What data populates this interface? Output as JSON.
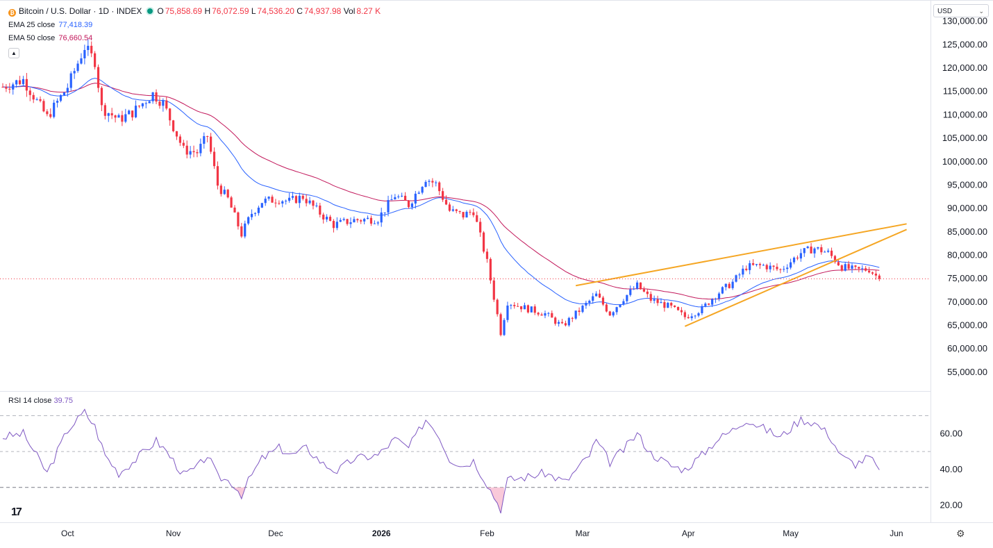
{
  "header": {
    "symbol": "Bitcoin / U.S. Dollar · 1D · INDEX",
    "coin_glyph": "₿",
    "ohlc": {
      "o_label": "O",
      "o_value": "75,858.69",
      "h_label": "H",
      "h_value": "76,072.59",
      "l_label": "L",
      "l_value": "74,536.20",
      "c_label": "C",
      "c_value": "74,937.98",
      "vol_label": "Vol",
      "vol_value": "8.27 K"
    },
    "ema25_label": "EMA 25 close",
    "ema25_value": "77,418.39",
    "ema50_label": "EMA 50 close",
    "ema50_value": "76,660.54",
    "collapse_icon": "chevron-up-icon",
    "currency": "USD"
  },
  "colors": {
    "up": "#2962ff",
    "down": "#f23645",
    "ema25": "#2962ff",
    "ema50": "#c2185b",
    "trendline": "#f5a623",
    "rsi": "#7e57c2",
    "rsi_fill": "#f8bbd0",
    "last_price_line": "#f23645"
  },
  "chart_data": {
    "type": "candlestick",
    "title": "Bitcoin / U.S. Dollar · 1D · INDEX",
    "y_axis": {
      "range": [
        52000,
        131000
      ],
      "ticks": [
        "130,000.00",
        "125,000.00",
        "120,000.00",
        "115,000.00",
        "110,000.00",
        "105,000.00",
        "100,000.00",
        "95,000.00",
        "90,000.00",
        "85,000.00",
        "80,000.00",
        "75,000.00",
        "70,000.00",
        "65,000.00",
        "60,000.00",
        "55,000.00"
      ],
      "tick_values": [
        130000,
        125000,
        120000,
        115000,
        110000,
        105000,
        100000,
        95000,
        90000,
        85000,
        80000,
        75000,
        70000,
        65000,
        60000,
        55000
      ]
    },
    "x_axis": {
      "labels": [
        "Oct",
        "Nov",
        "Dec",
        "2026",
        "Feb",
        "Mar",
        "Apr",
        "May",
        "Jun"
      ],
      "label_dates": [
        "2025-10-01",
        "2025-11-01",
        "2025-12-01",
        "2026-01-01",
        "2026-02-01",
        "2026-03-01",
        "2026-04-01",
        "2026-05-01",
        "2026-06-01"
      ],
      "start": "2025-09-12",
      "end": "2026-06-11"
    },
    "grid": false,
    "last_price": 74937.98,
    "anchors": [
      [
        "2025-09-12",
        116000
      ],
      [
        "2025-09-18",
        117500
      ],
      [
        "2025-09-25",
        109500
      ],
      [
        "2025-10-01",
        116000
      ],
      [
        "2025-10-06",
        124500
      ],
      [
        "2025-10-09",
        121500
      ],
      [
        "2025-10-11",
        111500
      ],
      [
        "2025-10-16",
        109000
      ],
      [
        "2025-10-20",
        110500
      ],
      [
        "2025-10-26",
        114500
      ],
      [
        "2025-10-29",
        112500
      ],
      [
        "2025-11-04",
        102500
      ],
      [
        "2025-11-08",
        102000
      ],
      [
        "2025-11-11",
        105500
      ],
      [
        "2025-11-14",
        95000
      ],
      [
        "2025-11-17",
        92000
      ],
      [
        "2025-11-21",
        84500
      ],
      [
        "2025-11-24",
        89000
      ],
      [
        "2025-11-27",
        91500
      ],
      [
        "2025-12-02",
        92000
      ],
      [
        "2025-12-05",
        91500
      ],
      [
        "2025-12-09",
        92500
      ],
      [
        "2025-12-14",
        89000
      ],
      [
        "2025-12-18",
        86500
      ],
      [
        "2025-12-24",
        87500
      ],
      [
        "2025-12-31",
        87800
      ],
      [
        "2026-01-05",
        92800
      ],
      [
        "2026-01-09",
        90800
      ],
      [
        "2026-01-14",
        96500
      ],
      [
        "2026-01-17",
        95200
      ],
      [
        "2026-01-21",
        89500
      ],
      [
        "2026-01-25",
        88500
      ],
      [
        "2026-01-28",
        89500
      ],
      [
        "2026-02-01",
        78500
      ],
      [
        "2026-02-05",
        63500
      ],
      [
        "2026-02-07",
        70000
      ],
      [
        "2026-02-13",
        68500
      ],
      [
        "2026-02-18",
        67500
      ],
      [
        "2026-02-23",
        64800
      ],
      [
        "2026-03-02",
        69500
      ],
      [
        "2026-03-05",
        71500
      ],
      [
        "2026-03-09",
        67500
      ],
      [
        "2026-03-13",
        70800
      ],
      [
        "2026-03-17",
        73500
      ],
      [
        "2026-03-21",
        70500
      ],
      [
        "2026-03-27",
        68800
      ],
      [
        "2026-03-31",
        66800
      ],
      [
        "2026-04-05",
        68500
      ],
      [
        "2026-04-09",
        71500
      ],
      [
        "2026-04-14",
        74200
      ],
      [
        "2026-04-18",
        77500
      ],
      [
        "2026-04-23",
        77800
      ],
      [
        "2026-04-28",
        76800
      ],
      [
        "2026-05-04",
        80500
      ],
      [
        "2026-05-08",
        81500
      ],
      [
        "2026-05-12",
        80500
      ],
      [
        "2026-05-16",
        77500
      ],
      [
        "2026-05-20",
        76800
      ],
      [
        "2026-05-24",
        77000
      ],
      [
        "2026-05-27",
        74938
      ]
    ],
    "ema25_label": "EMA 25 close",
    "ema25_last": 77418.39,
    "ema50_label": "EMA 50 close",
    "ema50_last": 76660.54,
    "trendlines": [
      {
        "from": [
          "2026-02-27",
          73500
        ],
        "to": [
          "2026-06-04",
          86700
        ]
      },
      {
        "from": [
          "2026-03-31",
          64800
        ],
        "to": [
          "2026-06-04",
          85500
        ]
      }
    ],
    "rsi": {
      "label": "RSI 14 close",
      "value": "39.75",
      "range": [
        14,
        76
      ],
      "ticks": [
        "60.00",
        "40.00",
        "20.00"
      ],
      "tick_values": [
        60,
        40,
        20
      ],
      "bands": [
        70,
        50,
        30
      ],
      "anchors": [
        [
          "2025-09-12",
          58
        ],
        [
          "2025-09-18",
          60
        ],
        [
          "2025-09-25",
          38
        ],
        [
          "2025-10-01",
          62
        ],
        [
          "2025-10-06",
          72
        ],
        [
          "2025-10-09",
          64
        ],
        [
          "2025-10-12",
          48
        ],
        [
          "2025-10-16",
          38
        ],
        [
          "2025-10-20",
          44
        ],
        [
          "2025-10-27",
          56
        ],
        [
          "2025-10-30",
          50
        ],
        [
          "2025-11-04",
          37
        ],
        [
          "2025-11-08",
          41
        ],
        [
          "2025-11-11",
          48
        ],
        [
          "2025-11-14",
          36
        ],
        [
          "2025-11-18",
          33
        ],
        [
          "2025-11-21",
          26
        ],
        [
          "2025-11-24",
          37
        ],
        [
          "2025-11-27",
          46
        ],
        [
          "2025-12-02",
          52
        ],
        [
          "2025-12-06",
          48
        ],
        [
          "2025-12-10",
          52
        ],
        [
          "2025-12-15",
          43
        ],
        [
          "2025-12-19",
          39
        ],
        [
          "2025-12-24",
          46
        ],
        [
          "2025-12-31",
          48
        ],
        [
          "2026-01-05",
          57
        ],
        [
          "2026-01-09",
          52
        ],
        [
          "2026-01-14",
          68
        ],
        [
          "2026-01-17",
          62
        ],
        [
          "2026-01-21",
          46
        ],
        [
          "2026-01-25",
          42
        ],
        [
          "2026-01-28",
          45
        ],
        [
          "2026-02-01",
          32
        ],
        [
          "2026-02-05",
          18
        ],
        [
          "2026-02-07",
          34
        ],
        [
          "2026-02-13",
          36
        ],
        [
          "2026-02-18",
          38
        ],
        [
          "2026-02-24",
          33
        ],
        [
          "2026-03-03",
          48
        ],
        [
          "2026-03-05",
          56
        ],
        [
          "2026-03-09",
          44
        ],
        [
          "2026-03-13",
          51
        ],
        [
          "2026-03-17",
          60
        ],
        [
          "2026-03-21",
          49
        ],
        [
          "2026-03-27",
          42
        ],
        [
          "2026-03-31",
          40
        ],
        [
          "2026-04-05",
          48
        ],
        [
          "2026-04-09",
          56
        ],
        [
          "2026-04-14",
          62
        ],
        [
          "2026-04-18",
          68
        ],
        [
          "2026-04-23",
          63
        ],
        [
          "2026-04-28",
          58
        ],
        [
          "2026-05-04",
          68
        ],
        [
          "2026-05-08",
          66
        ],
        [
          "2026-05-12",
          60
        ],
        [
          "2026-05-16",
          47
        ],
        [
          "2026-05-20",
          43
        ],
        [
          "2026-05-24",
          47
        ],
        [
          "2026-05-27",
          39.75
        ]
      ]
    }
  }
}
